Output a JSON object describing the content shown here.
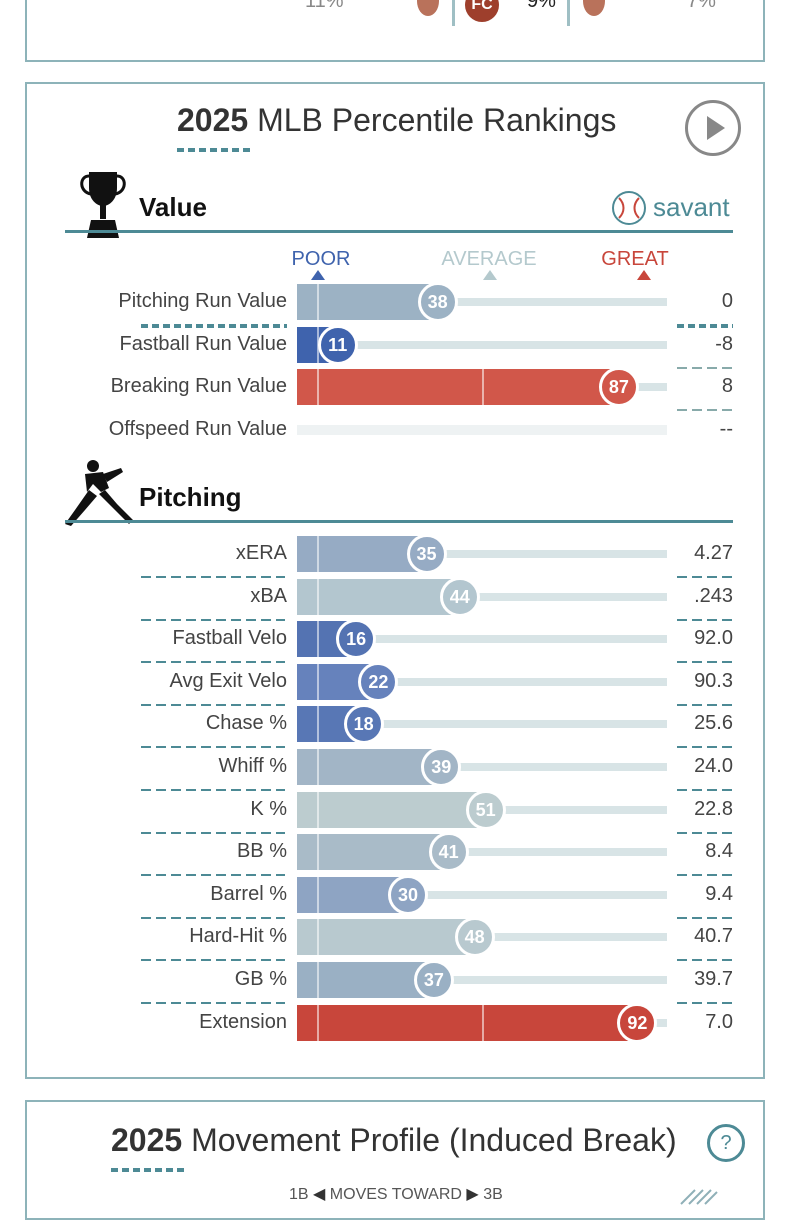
{
  "top_fragment": {
    "values": [
      "11%",
      "9%",
      "7%"
    ],
    "badge": "FC"
  },
  "percentile": {
    "title_year": "2025",
    "title_rest": " MLB Percentile Rankings",
    "value_section": "Value",
    "pitching_section": "Pitching",
    "brand": "savant",
    "scale": {
      "poor": "POOR",
      "average": "AVERAGE",
      "great": "GREAT"
    },
    "value_rows": [
      {
        "label": "Pitching Run Value",
        "pct": 38,
        "value": "0",
        "color": "#9cb2c4"
      },
      {
        "label": "Fastball Run Value",
        "pct": 11,
        "value": "-8",
        "color": "#3f63ad"
      },
      {
        "label": "Breaking Run Value",
        "pct": 87,
        "value": "8",
        "color": "#d1574a"
      },
      {
        "label": "Offspeed Run Value",
        "pct": null,
        "value": "--",
        "color": "#eef2f3"
      }
    ],
    "pitching_rows": [
      {
        "label": "xERA",
        "pct": 35,
        "value": "4.27",
        "color": "#96abc4"
      },
      {
        "label": "xBA",
        "pct": 44,
        "value": ".243",
        "color": "#b3c6cf"
      },
      {
        "label": "Fastball Velo",
        "pct": 16,
        "value": "92.0",
        "color": "#5473b2"
      },
      {
        "label": "Avg Exit Velo",
        "pct": 22,
        "value": "90.3",
        "color": "#6682bc"
      },
      {
        "label": "Chase %",
        "pct": 18,
        "value": "25.6",
        "color": "#5877b5"
      },
      {
        "label": "Whiff %",
        "pct": 39,
        "value": "24.0",
        "color": "#a2b5c6"
      },
      {
        "label": "K %",
        "pct": 51,
        "value": "22.8",
        "color": "#bccccf"
      },
      {
        "label": "BB %",
        "pct": 41,
        "value": "8.4",
        "color": "#a9bbc8"
      },
      {
        "label": "Barrel %",
        "pct": 30,
        "value": "9.4",
        "color": "#8ea4c3"
      },
      {
        "label": "Hard-Hit %",
        "pct": 48,
        "value": "40.7",
        "color": "#b8c9cf"
      },
      {
        "label": "GB %",
        "pct": 37,
        "value": "39.7",
        "color": "#9ab0c4"
      },
      {
        "label": "Extension",
        "pct": 92,
        "value": "7.0",
        "color": "#c8463b"
      }
    ]
  },
  "movement": {
    "title_year": "2025",
    "title_rest": " Movement Profile (Induced Break)",
    "help": "?",
    "axis_left": "1B",
    "axis_mid": "MOVES TOWARD",
    "axis_right": "3B"
  }
}
